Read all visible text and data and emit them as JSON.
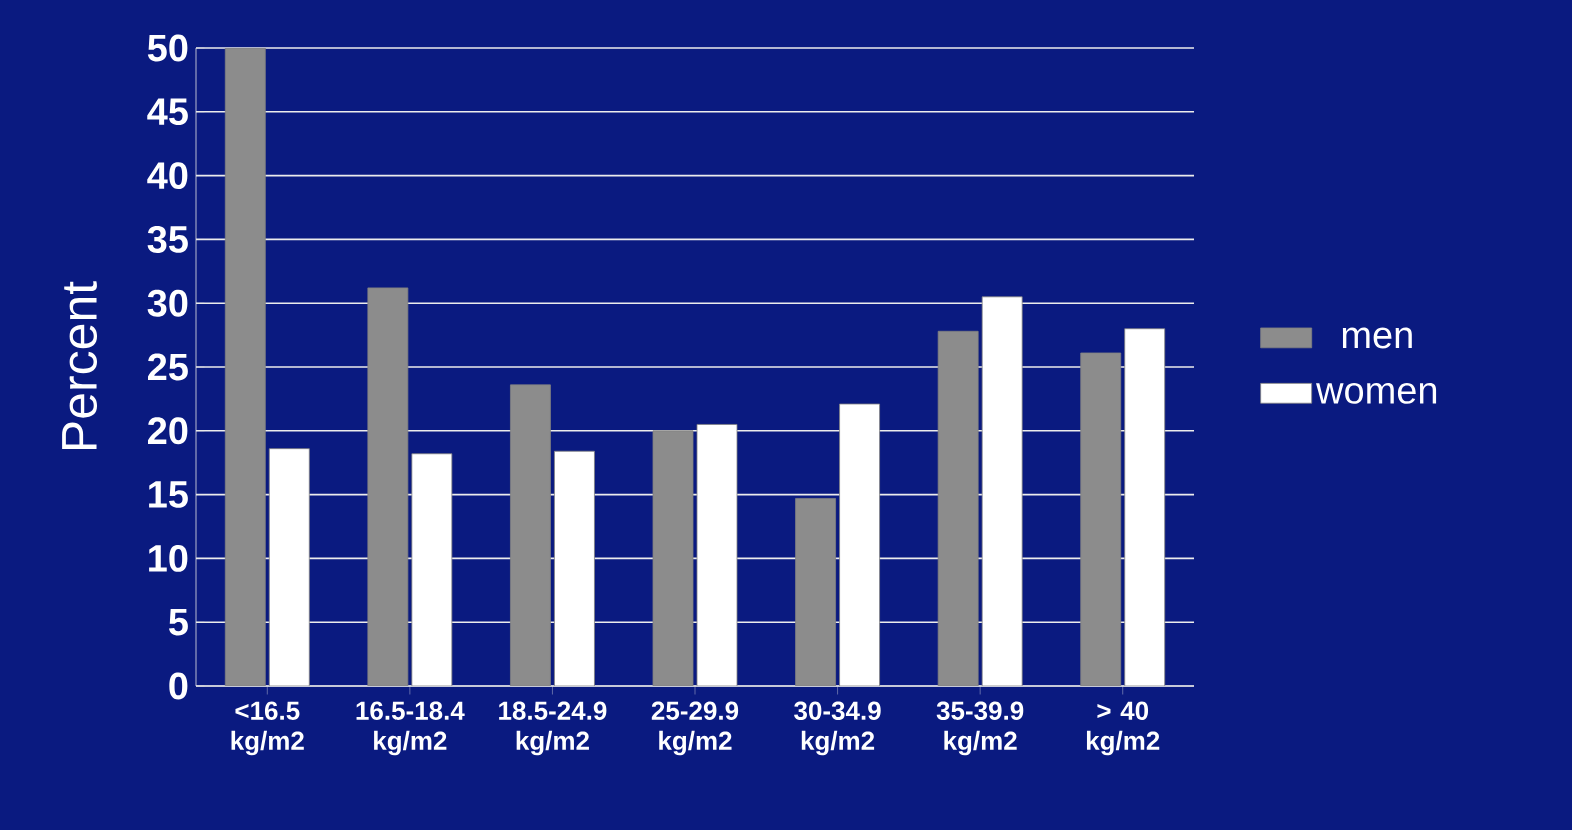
{
  "chart_data": {
    "type": "bar",
    "ylabel": "Percent",
    "categories": [
      "<16.5 kg/m2",
      "16.5-18.4 kg/m2",
      "18.5-24.9 kg/m2",
      "25-29.9 kg/m2",
      "30-34.9 kg/m2",
      "35-39.9 kg/m2",
      "> 40 kg/m2"
    ],
    "series": [
      {
        "name": "men",
        "color": "#8c8c8c",
        "values": [
          50,
          31.2,
          23.6,
          20,
          14.7,
          27.8,
          26.1
        ]
      },
      {
        "name": "women",
        "color": "#ffffff",
        "values": [
          18.6,
          18.2,
          18.4,
          20.5,
          22.1,
          30.5,
          28
        ]
      }
    ],
    "ylim": [
      0,
      50
    ],
    "yticks": [
      0,
      5,
      10,
      15,
      20,
      25,
      30,
      35,
      40,
      45,
      50
    ],
    "grid": "y",
    "legend": "right"
  }
}
